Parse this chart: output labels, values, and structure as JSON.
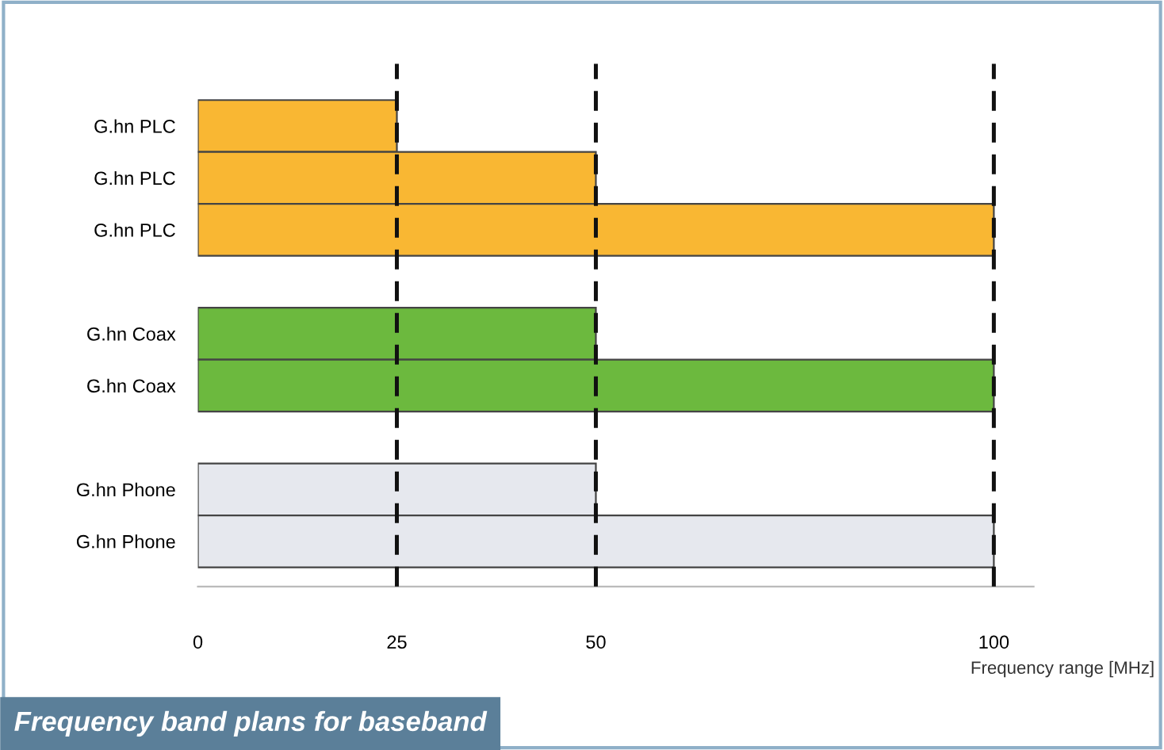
{
  "chart_data": {
    "type": "bar",
    "orientation": "horizontal",
    "title": "Frequency band plans for baseband",
    "xlabel": "Frequency range [MHz]",
    "categories": [
      "G.hn PLC",
      "G.hn PLC",
      "G.hn PLC",
      null,
      "G.hn Coax",
      "G.hn Coax",
      null,
      "G.hn Phone",
      "G.hn Phone"
    ],
    "values": [
      25,
      50,
      100,
      null,
      50,
      100,
      null,
      50,
      100
    ],
    "colors": [
      "#f9b733",
      "#f9b733",
      "#f9b733",
      "#ffffff",
      "#6cb93e",
      "#6cb93e",
      "#ffffff",
      "#e6e8ee",
      "#e6e8ee"
    ],
    "xlim": [
      0,
      105
    ],
    "xticks": [
      0,
      25,
      50,
      100
    ],
    "ref_lines": [
      {
        "axis": "x",
        "value": 25,
        "color": "#111111",
        "line_style": "dashed"
      },
      {
        "axis": "x",
        "value": 50,
        "color": "#111111",
        "line_style": "dashed"
      },
      {
        "axis": "x",
        "value": 100,
        "color": "#111111",
        "line_style": "dashed"
      }
    ],
    "grid": false,
    "legend": false
  }
}
